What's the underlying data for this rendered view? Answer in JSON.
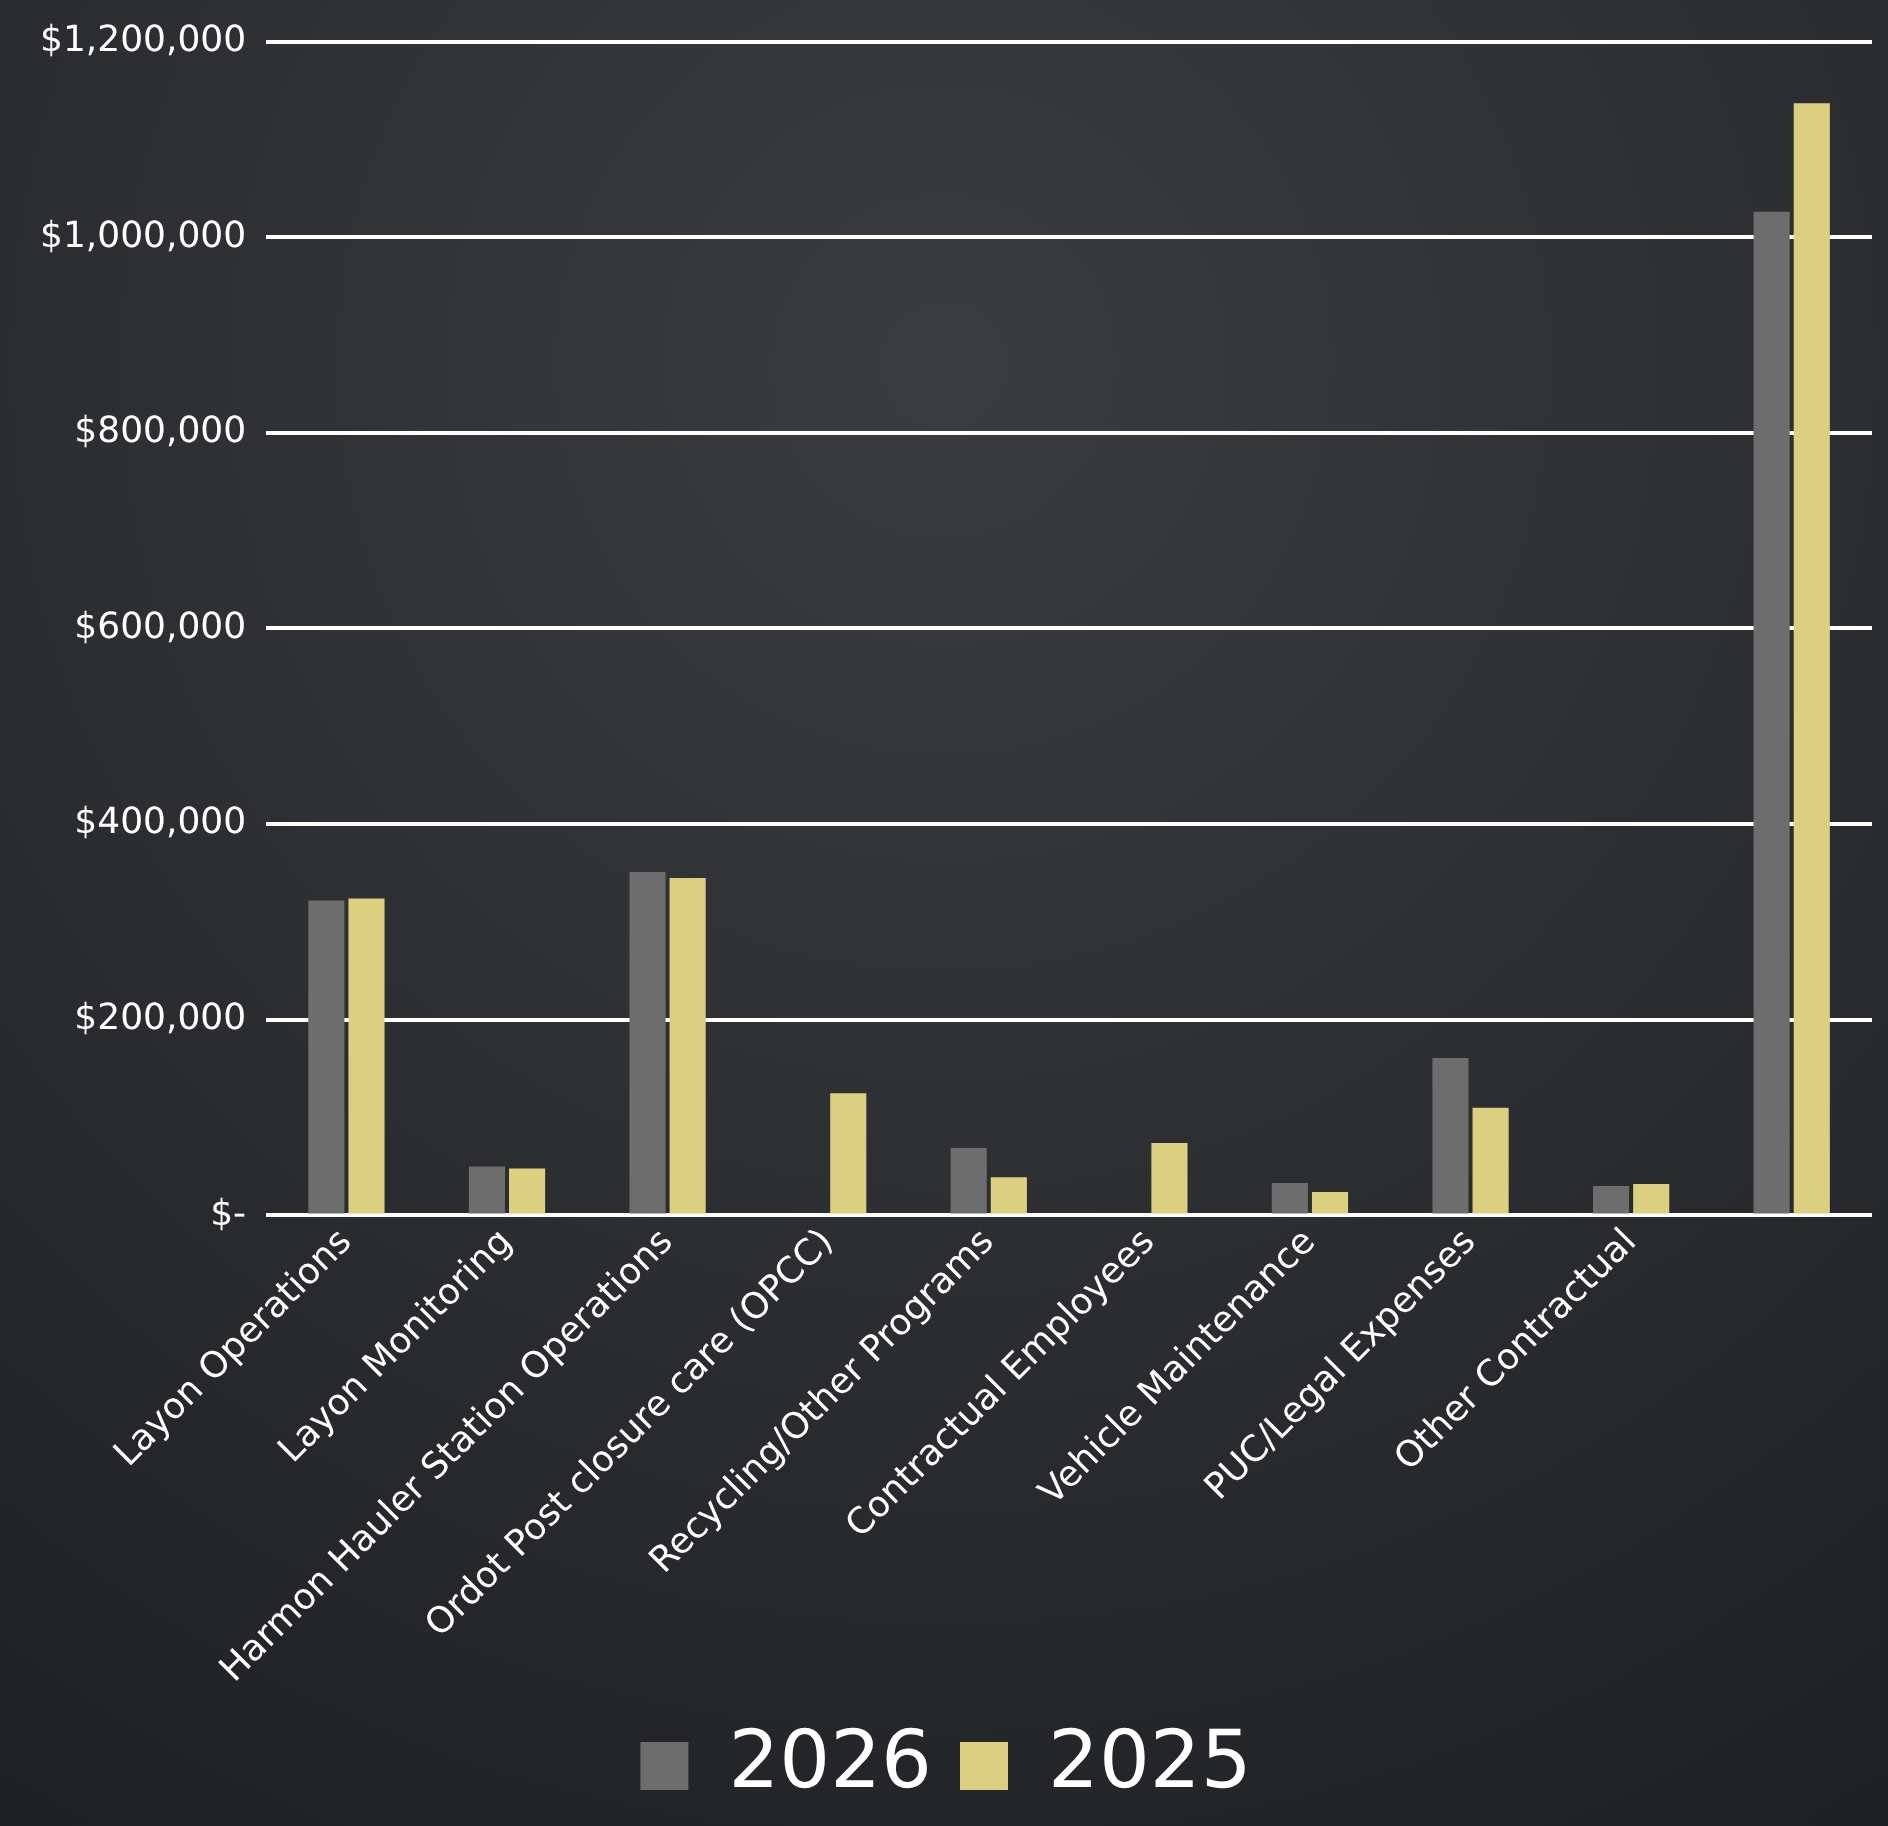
{
  "chart_data": {
    "type": "bar",
    "categories": [
      "Layon Operations",
      "Layon Monitoring",
      "Harmon Hauler Station Operations",
      "Ordot Post closure care (OPCC)",
      "Recycling/Other Programs",
      "Contractual Employees",
      "Vehicle Maintenance",
      "PUC/Legal Expenses",
      "Other Contractual",
      null
    ],
    "series": [
      {
        "name": "2026",
        "color": "#6d6d6d",
        "values": [
          322000,
          50000,
          351000,
          null,
          69000,
          null,
          33000,
          161000,
          30000,
          1026000
        ]
      },
      {
        "name": "2025",
        "color": "#dccf80",
        "values": [
          324000,
          48000,
          345000,
          125000,
          39000,
          74000,
          24000,
          110000,
          32000,
          1137000
        ]
      }
    ],
    "ylim": [
      0,
      1200000
    ],
    "yticks": [
      {
        "value": 0,
        "label": "$-"
      },
      {
        "value": 200000,
        "label": "$200,000"
      },
      {
        "value": 400000,
        "label": "$400,000"
      },
      {
        "value": 600000,
        "label": "$600,000"
      },
      {
        "value": 800000,
        "label": "$800,000"
      },
      {
        "value": 1000000,
        "label": "$1,000,000"
      },
      {
        "value": 1200000,
        "label": "$1,200,000"
      }
    ],
    "grid": "y",
    "legend": "bottom"
  }
}
